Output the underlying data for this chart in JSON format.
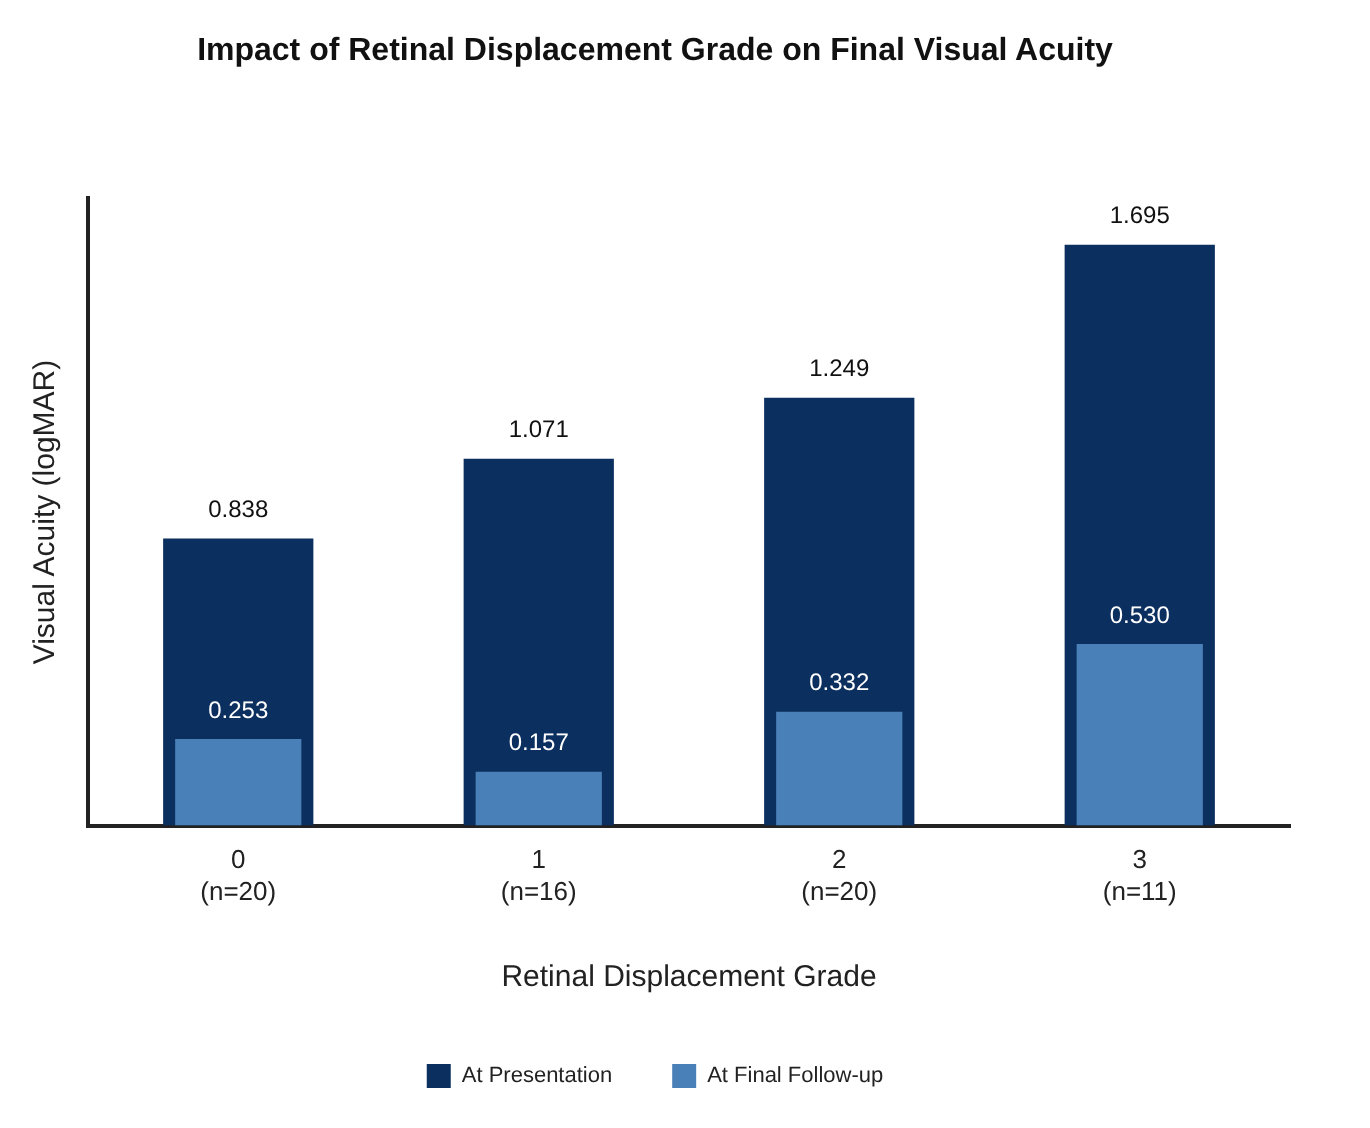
{
  "chart_data": {
    "type": "bar",
    "title": "Impact of Retinal Displacement Grade on Final Visual Acuity",
    "xlabel": "Retinal Displacement Grade",
    "ylabel": "Visual Acuity (logMAR)",
    "categories": [
      "0\n(n=20)",
      "1\n(n=16)",
      "2\n(n=20)",
      "3\n(n=11)"
    ],
    "series": [
      {
        "name": "At Presentation",
        "color": "#0b2f5e",
        "values": [
          0.838,
          1.071,
          1.249,
          1.695
        ],
        "value_labels": [
          "0.838",
          "1.071",
          "1.249",
          "1.695"
        ]
      },
      {
        "name": "At Final Follow-up",
        "color": "#4a80b8",
        "values": [
          0.253,
          0.157,
          0.332,
          0.53
        ],
        "value_labels": [
          "0.253",
          "0.157",
          "0.332",
          "0.530"
        ]
      }
    ],
    "grid": false,
    "legend": "bottom"
  }
}
